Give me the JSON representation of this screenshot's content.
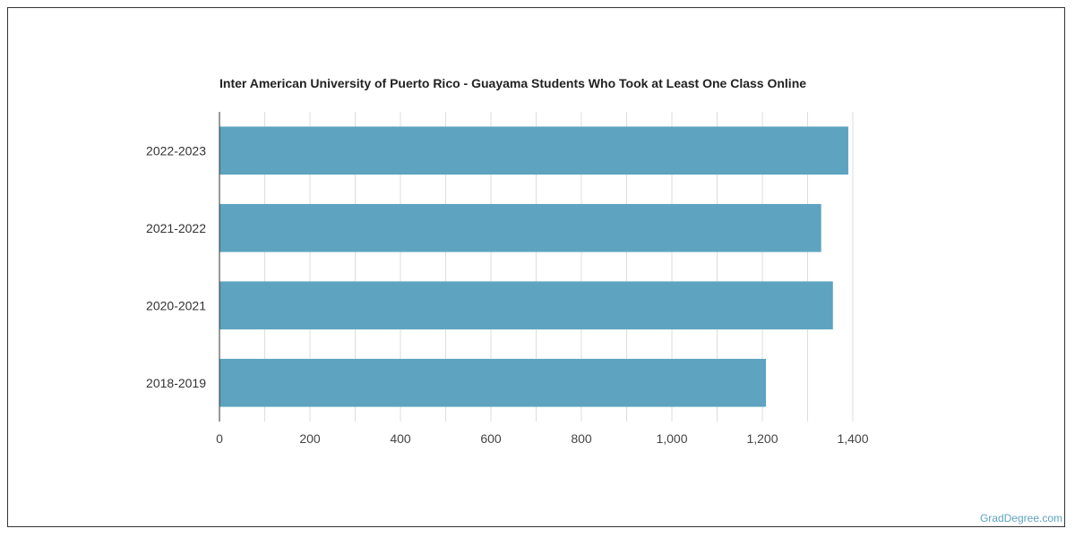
{
  "chart_data": {
    "type": "bar",
    "orientation": "horizontal",
    "title": "Inter American University of Puerto Rico - Guayama Students Who Took at Least One Class Online",
    "categories": [
      "2022-2023",
      "2021-2022",
      "2020-2021",
      "2018-2019"
    ],
    "values": [
      1390,
      1330,
      1356,
      1208
    ],
    "xlim": [
      0,
      1400
    ],
    "xticks": [
      0,
      200,
      400,
      600,
      800,
      1000,
      1200,
      1400
    ],
    "xtick_labels": [
      "0",
      "200",
      "400",
      "600",
      "800",
      "1,000",
      "1,200",
      "1,400"
    ],
    "xlabel": "",
    "ylabel": "",
    "grid": true,
    "bar_color": "#5ea3bf"
  },
  "footer": {
    "source": "GradDegree.com"
  }
}
